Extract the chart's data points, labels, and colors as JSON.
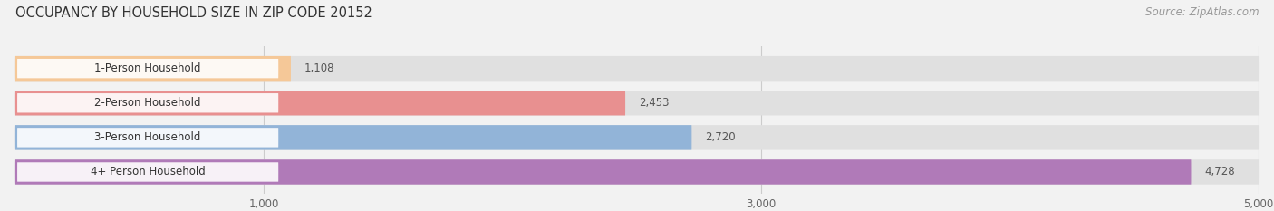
{
  "title": "OCCUPANCY BY HOUSEHOLD SIZE IN ZIP CODE 20152",
  "source": "Source: ZipAtlas.com",
  "categories": [
    "1-Person Household",
    "2-Person Household",
    "3-Person Household",
    "4+ Person Household"
  ],
  "values": [
    1108,
    2453,
    2720,
    4728
  ],
  "bar_colors": [
    "#f5c898",
    "#e89090",
    "#92b4d8",
    "#b07ab8"
  ],
  "xlim": [
    0,
    5000
  ],
  "xticks": [
    1000,
    3000,
    5000
  ],
  "xtick_labels": [
    "1,000",
    "3,000",
    "5,000"
  ],
  "value_labels": [
    "1,108",
    "2,453",
    "2,720",
    "4,728"
  ],
  "background_color": "#f2f2f2",
  "bar_background_color": "#e0e0e0",
  "title_fontsize": 10.5,
  "source_fontsize": 8.5,
  "label_fontsize": 8.5,
  "value_fontsize": 8.5,
  "tick_fontsize": 8.5,
  "fig_width": 14.06,
  "fig_height": 2.33
}
